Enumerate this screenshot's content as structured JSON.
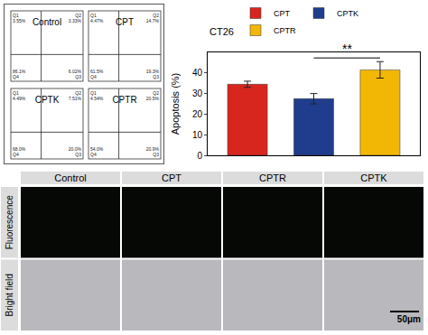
{
  "flow_cytometry": {
    "panels": [
      {
        "label": "Control",
        "quadrants": [
          {
            "name": "Q1",
            "text": "3.55%"
          },
          {
            "name": "Q2",
            "text": "3.33%"
          },
          {
            "name": "Q4",
            "text": "86.1%"
          },
          {
            "name": "Q3",
            "text": "6.02%"
          }
        ]
      },
      {
        "label": "CPT",
        "quadrants": [
          {
            "name": "Q1",
            "text": "4.47%"
          },
          {
            "name": "Q2",
            "text": "14.7%"
          },
          {
            "name": "Q4",
            "text": "61.5%"
          },
          {
            "name": "Q3",
            "text": "19.3%"
          }
        ]
      },
      {
        "label": "CPTK",
        "quadrants": [
          {
            "name": "Q1",
            "text": "4.49%"
          },
          {
            "name": "Q2",
            "text": "7.51%"
          },
          {
            "name": "Q4",
            "text": "68.0%"
          },
          {
            "name": "Q3",
            "text": "20.0%"
          }
        ]
      },
      {
        "label": "CPTR",
        "quadrants": [
          {
            "name": "Q1",
            "text": "4.54%"
          },
          {
            "name": "Q2",
            "text": "20.5%"
          },
          {
            "name": "Q4",
            "text": "54.0%"
          },
          {
            "name": "Q3",
            "text": "20.9%"
          }
        ]
      }
    ]
  },
  "chart_data": {
    "type": "bar",
    "title": "CT26",
    "y_label": "Apoptosis (%)",
    "categories": [
      "CPT",
      "CPTK",
      "CPTR"
    ],
    "values": [
      34.5,
      27.5,
      41.5
    ],
    "error": [
      1.5,
      2.5,
      4.0
    ],
    "colors": [
      "#d7261e",
      "#1f3d8c",
      "#f2b705"
    ],
    "ylim": [
      0,
      50
    ],
    "yticks": [
      0,
      10,
      20,
      30,
      40
    ],
    "legend": "top",
    "tick_labels": "y",
    "grid": false,
    "annotations": [
      {
        "text": "**",
        "from": "CPTK",
        "to": "CPTR"
      }
    ]
  },
  "microscopy": {
    "columns": [
      "Control",
      "CPT",
      "CPTR",
      "CPTK"
    ],
    "rows": [
      "Fluorescence",
      "Bright field"
    ],
    "scale_bar": "50μm"
  }
}
